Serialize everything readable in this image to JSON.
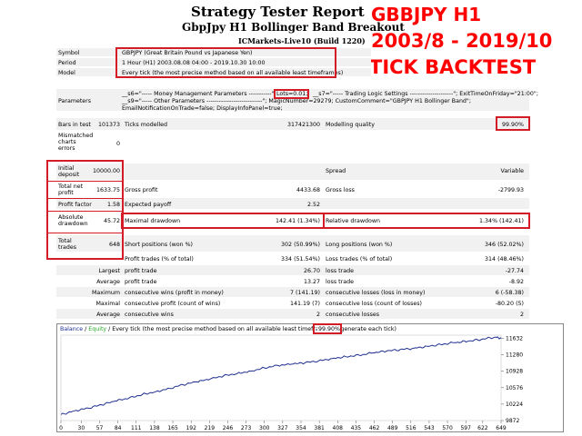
{
  "header": {
    "title": "Strategy Tester Report",
    "subtitle": "GbpJpy H1 Bollinger Band Breakout",
    "server": "ICMarkets-Live10 (Build 1220)"
  },
  "overlay": {
    "line1": "GBBJPY H1",
    "line2": "2003/8 - 2019/10",
    "line3": "TICK BACKTEST"
  },
  "info": {
    "symbol_label": "Symbol",
    "symbol_value": "GBPJPY (Great Britain Pound vs Japanese Yen)",
    "period_label": "Period",
    "period_value": "1 Hour (H1) 2003.08.08 04:00 - 2019.10.30 10:00",
    "model_label": "Model",
    "model_value": "Every tick (the most precise method based on all available least timeframes)",
    "parameters_label": "Parameters",
    "param_line1a": "__s6=\"----- Money Management Parameters -----------\";",
    "param_lots": "Lots=0.01;",
    "param_line1b": "__s7=\"----- Trading Logic Settings ---------------------\"; ExitTimeOnFriday=\"21:00\";",
    "param_line2": "__s9=\"----- Other Parameters ---------------------------\"; MagicNumber=29279; CustomComment=\"GBPJPY H1 Bollinger Band\";",
    "param_line3": "EmailNotificationOnTrade=false; DisplayInfoPanel=true;"
  },
  "stats": {
    "bars_label": "Bars in test",
    "bars_value": "101373",
    "ticks_label": "Ticks modelled",
    "ticks_value": "317421300",
    "quality_label": "Modelling quality",
    "quality_value": "99.90%",
    "mismatch_label": "Mismatched charts errors",
    "mismatch_value": "0",
    "initial_label": "Initial deposit",
    "initial_value": "10000.00",
    "spread_label": "Spread",
    "spread_value": "Variable",
    "net_label": "Total net profit",
    "net_value": "1633.75",
    "gross_profit_label": "Gross profit",
    "gross_profit_value": "4433.68",
    "gross_loss_label": "Gross loss",
    "gross_loss_value": "-2799.93",
    "pf_label": "Profit factor",
    "pf_value": "1.58",
    "exp_label": "Expected payoff",
    "exp_value": "2.52",
    "abs_dd_label": "Absolute drawdown",
    "abs_dd_value": "45.72",
    "max_dd_label": "Maximal drawdown",
    "max_dd_value": "142.41 (1.34%)",
    "rel_dd_label": "Relative drawdown",
    "rel_dd_value": "1.34% (142.41)",
    "total_trades_label": "Total trades",
    "total_trades_value": "648",
    "short_label": "Short positions (won %)",
    "short_value": "302 (50.99%)",
    "long_label": "Long positions (won %)",
    "long_value": "346 (52.02%)",
    "profit_trades_label": "Profit trades (% of total)",
    "profit_trades_value": "334 (51.54%)",
    "loss_trades_label": "Loss trades (% of total)",
    "loss_trades_value": "314 (48.46%)",
    "largest_label": "Largest",
    "largest_profit_label": "profit trade",
    "largest_profit_value": "26.70",
    "largest_loss_label": "loss trade",
    "largest_loss_value": "-27.74",
    "average_label": "Average",
    "avg_profit_label": "profit trade",
    "avg_profit_value": "13.27",
    "avg_loss_label": "loss trade",
    "avg_loss_value": "-8.92",
    "maximum_label": "Maximum",
    "max_cw_label": "consecutive wins (profit in money)",
    "max_cw_value": "7 (141.19)",
    "max_cl_label": "consecutive losses (loss in money)",
    "max_cl_value": "6 (-58.38)",
    "maximal_label": "Maximal",
    "maxl_cp_label": "consecutive profit (count of wins)",
    "maxl_cp_value": "141.19 (7)",
    "maxl_cl_label": "consecutive loss (count of losses)",
    "maxl_cl_value": "-80.20 (5)",
    "avg2_label": "Average",
    "avg_cw_label": "consecutive wins",
    "avg_cw_value": "2",
    "avg_cl_label": "consecutive losses",
    "avg_cl_value": "2"
  },
  "chart_legend": {
    "balance": "Balance",
    "slash": " / ",
    "equity": "Equity",
    "desc": " / Every tick (the most precise method based on all available least timeframes to generate each tick)",
    "quality": "99.90%"
  },
  "colors": {
    "red_accent": "#d41c26",
    "balance_line": "#1f2f8f",
    "equity_label": "#2aa52a"
  },
  "chart_data": {
    "type": "line",
    "title": "",
    "xlabel": "",
    "ylabel": "",
    "x_ticks": [
      "0",
      "30",
      "57",
      "84",
      "111",
      "138",
      "165",
      "192",
      "219",
      "246",
      "273",
      "300",
      "327",
      "354",
      "381",
      "408",
      "435",
      "462",
      "489",
      "516",
      "543",
      "570",
      "597",
      "622",
      "649"
    ],
    "y_ticks": [
      "9872",
      "10224",
      "10576",
      "10928",
      "11280",
      "11632"
    ],
    "xlim": [
      0,
      649
    ],
    "ylim": [
      9872,
      11700
    ],
    "series": [
      {
        "name": "Balance",
        "x": [
          0,
          20,
          40,
          60,
          80,
          100,
          120,
          140,
          160,
          180,
          200,
          220,
          240,
          260,
          280,
          300,
          320,
          340,
          360,
          380,
          400,
          420,
          440,
          460,
          480,
          500,
          520,
          540,
          560,
          580,
          600,
          620,
          640,
          649
        ],
        "y": [
          10000,
          10080,
          10140,
          10210,
          10290,
          10350,
          10430,
          10490,
          10560,
          10640,
          10700,
          10760,
          10830,
          10880,
          10930,
          11000,
          11050,
          11080,
          11110,
          11150,
          11200,
          11240,
          11270,
          11320,
          11360,
          11390,
          11420,
          11460,
          11500,
          11540,
          11570,
          11610,
          11660,
          11633
        ]
      }
    ]
  }
}
